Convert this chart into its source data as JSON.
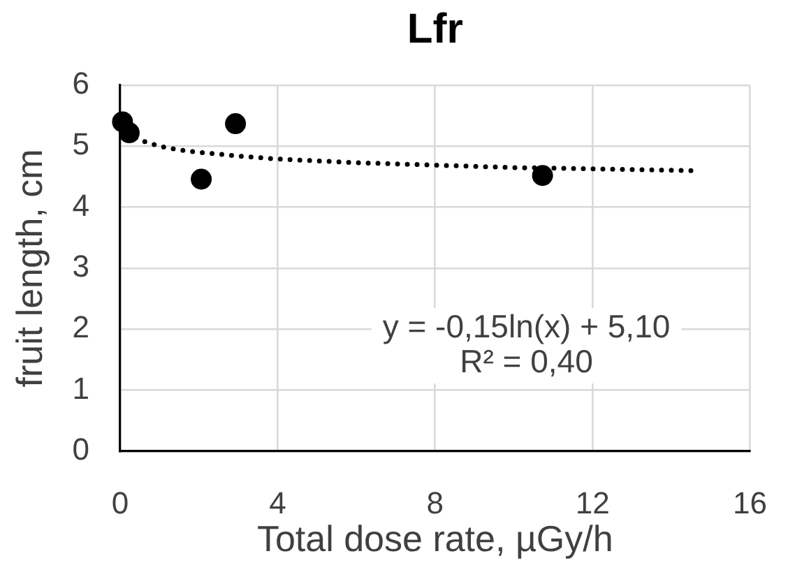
{
  "chart_data": {
    "type": "scatter",
    "title": "Lfr",
    "xlabel": "Total dose rate, µGy/h",
    "ylabel": "fruit length, cm",
    "xlim": [
      0,
      16
    ],
    "xticks": [
      0,
      4,
      8,
      12,
      16
    ],
    "ylim": [
      0,
      6
    ],
    "yticks": [
      0,
      1,
      2,
      3,
      4,
      5,
      6
    ],
    "grid": true,
    "marker": "circle",
    "series": [
      {
        "type": "scatter",
        "color": "#000000",
        "x": [
          0.06,
          0.23,
          2.06,
          2.93,
          10.73
        ],
        "values": [
          5.4,
          5.22,
          4.46,
          5.37,
          4.52
        ]
      },
      {
        "type": "line",
        "color": "#000000",
        "line_style": "dotted",
        "marker": "none",
        "x": [
          0.4,
          0.6,
          1,
          1.5,
          2,
          3,
          4,
          6,
          8,
          10,
          12,
          14.6
        ],
        "values": [
          5.14,
          5.08,
          5.0,
          4.94,
          4.9,
          4.84,
          4.79,
          4.73,
          4.69,
          4.65,
          4.63,
          4.6
        ]
      }
    ],
    "annotations": [
      "y = -0,15ln(x) + 5,10",
      "R² = 0,40"
    ]
  }
}
